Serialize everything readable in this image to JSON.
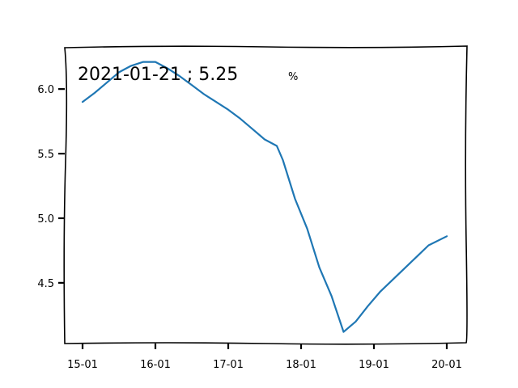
{
  "chart_data": {
    "type": "line",
    "title": "",
    "xlabel": "",
    "ylabel": "",
    "x_ticks": [
      "15-01",
      "16-01",
      "17-01",
      "18-01",
      "19-01",
      "20-01"
    ],
    "y_ticks": [
      "4.5",
      "5.0",
      "5.5",
      "6.0"
    ],
    "xlim": [
      0,
      60
    ],
    "ylim": [
      4.03,
      6.32
    ],
    "grid": false,
    "annotation": {
      "text": "2021-01-21 ; 5.25",
      "unit": "%"
    },
    "series": [
      {
        "color": "#1f77b4",
        "x": [
          0,
          2,
          4,
          6,
          8,
          10,
          12,
          14,
          16,
          18,
          20,
          22,
          24,
          26,
          28,
          30,
          32,
          33,
          35,
          37,
          39,
          41,
          43,
          45,
          47,
          49,
          51,
          53,
          55,
          57,
          60
        ],
        "y": [
          5.9,
          5.97,
          6.05,
          6.13,
          6.18,
          6.21,
          6.21,
          6.16,
          6.1,
          6.03,
          5.96,
          5.9,
          5.84,
          5.77,
          5.69,
          5.61,
          5.56,
          5.45,
          5.15,
          4.92,
          4.62,
          4.4,
          4.12,
          4.2,
          4.32,
          4.43,
          4.52,
          4.61,
          4.7,
          4.79,
          4.86
        ]
      }
    ]
  }
}
